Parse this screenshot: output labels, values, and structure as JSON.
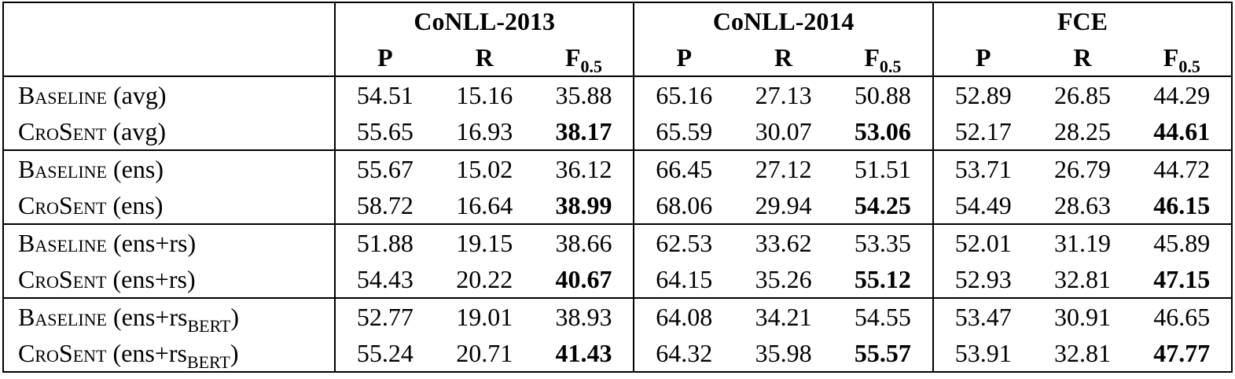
{
  "table": {
    "groups": [
      "CoNLL-2013",
      "CoNLL-2014",
      "FCE"
    ],
    "metrics": [
      {
        "label": "P"
      },
      {
        "label": "R"
      },
      {
        "label": "F",
        "sub": "0.5"
      }
    ],
    "row_blocks": [
      [
        {
          "name": "Baseline",
          "setting": "(avg)",
          "values": [
            "54.51",
            "15.16",
            "35.88",
            "65.16",
            "27.13",
            "50.88",
            "52.89",
            "26.85",
            "44.29"
          ],
          "bold": []
        },
        {
          "name": "CroSent",
          "setting": "(avg)",
          "values": [
            "55.65",
            "16.93",
            "38.17",
            "65.59",
            "30.07",
            "53.06",
            "52.17",
            "28.25",
            "44.61"
          ],
          "bold": [
            2,
            5,
            8
          ]
        }
      ],
      [
        {
          "name": "Baseline",
          "setting": "(ens)",
          "values": [
            "55.67",
            "15.02",
            "36.12",
            "66.45",
            "27.12",
            "51.51",
            "53.71",
            "26.79",
            "44.72"
          ],
          "bold": []
        },
        {
          "name": "CroSent",
          "setting": "(ens)",
          "values": [
            "58.72",
            "16.64",
            "38.99",
            "68.06",
            "29.94",
            "54.25",
            "54.49",
            "28.63",
            "46.15"
          ],
          "bold": [
            2,
            5,
            8
          ]
        }
      ],
      [
        {
          "name": "Baseline",
          "setting": "(ens+rs)",
          "values": [
            "51.88",
            "19.15",
            "38.66",
            "62.53",
            "33.62",
            "53.35",
            "52.01",
            "31.19",
            "45.89"
          ],
          "bold": []
        },
        {
          "name": "CroSent",
          "setting": "(ens+rs)",
          "values": [
            "54.43",
            "20.22",
            "40.67",
            "64.15",
            "35.26",
            "55.12",
            "52.93",
            "32.81",
            "47.15"
          ],
          "bold": [
            2,
            5,
            8
          ]
        }
      ],
      [
        {
          "name": "Baseline",
          "setting": "(ens+rs",
          "setting_sub": "BERT",
          "setting_end": ")",
          "values": [
            "52.77",
            "19.01",
            "38.93",
            "64.08",
            "34.21",
            "54.55",
            "53.47",
            "30.91",
            "46.65"
          ],
          "bold": []
        },
        {
          "name": "CroSent",
          "setting": "(ens+rs",
          "setting_sub": "BERT",
          "setting_end": ")",
          "values": [
            "55.24",
            "20.71",
            "41.43",
            "64.32",
            "35.98",
            "55.57",
            "53.91",
            "32.81",
            "47.77"
          ],
          "bold": [
            2,
            5,
            8
          ]
        }
      ]
    ]
  }
}
